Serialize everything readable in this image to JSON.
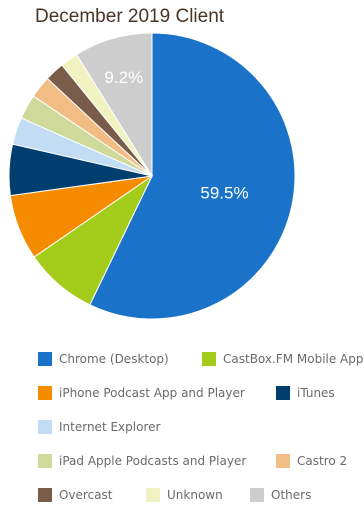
{
  "chart_data": {
    "type": "pie",
    "title": "December 2019 Client",
    "start_angle_deg": 0,
    "direction": "clockwise",
    "legend_position": "bottom",
    "categories": [
      "Chrome (Desktop)",
      "CastBox.FM Mobile App",
      "iPhone Podcast App and Player",
      "iTunes",
      "Internet Explorer",
      "iPad Apple Podcasts and Player",
      "Castro 2",
      "Overcast",
      "Unknown",
      "Others"
    ],
    "values": [
      59.5,
      8.6,
      7.7,
      6.0,
      3.2,
      2.9,
      2.6,
      2.3,
      2.1,
      9.2
    ],
    "colors": [
      "#1a73c8",
      "#a4cc1a",
      "#f58c00",
      "#003e6f",
      "#c2dcf3",
      "#cfd99a",
      "#f2bd84",
      "#7a5c4a",
      "#f0f3c1",
      "#cdcdcd"
    ],
    "data_labels": [
      {
        "index": 0,
        "text": "59.5%"
      },
      {
        "index": 9,
        "text": "9.2%"
      }
    ]
  }
}
